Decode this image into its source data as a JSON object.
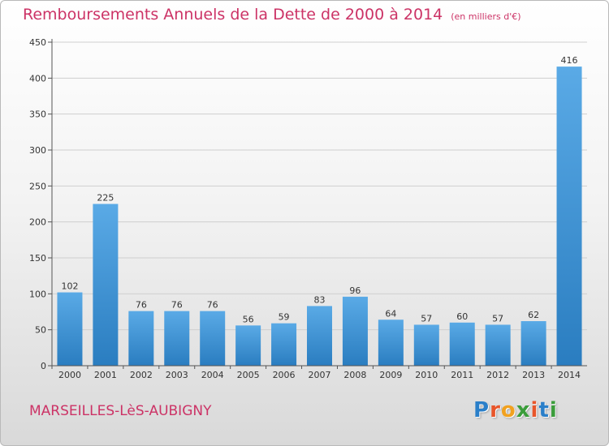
{
  "header": {
    "title": "Remboursements Annuels de la Dette de 2000 à 2014",
    "unit": "(en milliers d'€)"
  },
  "footer": {
    "city": "MARSEILLES-LèS-AUBIGNY",
    "logo_letters": [
      "P",
      "r",
      "o",
      "x",
      "i",
      "t",
      "i"
    ],
    "logo_colors": [
      "#2a7fc9",
      "#e8552a",
      "#f1a11f",
      "#3b9d3b",
      "#e8552a",
      "#2a7fc9",
      "#3b9d3b"
    ]
  },
  "colors": {
    "bar_light": "#5aaae6",
    "bar_dark": "#2a7dc0",
    "axis": "#555555",
    "grid": "#cfcfcf",
    "accent": "#cc3366"
  },
  "chart_data": {
    "type": "bar",
    "categories": [
      "2000",
      "2001",
      "2002",
      "2003",
      "2004",
      "2005",
      "2006",
      "2007",
      "2008",
      "2009",
      "2010",
      "2011",
      "2012",
      "2013",
      "2014"
    ],
    "values": [
      102,
      225,
      76,
      76,
      76,
      56,
      59,
      83,
      96,
      64,
      57,
      60,
      57,
      62,
      416
    ],
    "data_labels": [
      "102",
      "225",
      "76",
      "76",
      "76",
      "56",
      "59",
      "83",
      "96",
      "64",
      "57",
      "60",
      "57",
      "62",
      "416"
    ],
    "yticks": [
      0,
      50,
      100,
      150,
      200,
      250,
      300,
      350,
      400,
      450
    ],
    "ytick_labels": [
      "0",
      "50",
      "100",
      "150",
      "200",
      "250",
      "300",
      "350",
      "400",
      "450"
    ],
    "ylim": [
      0,
      450
    ],
    "grid": true,
    "legend": "none"
  }
}
